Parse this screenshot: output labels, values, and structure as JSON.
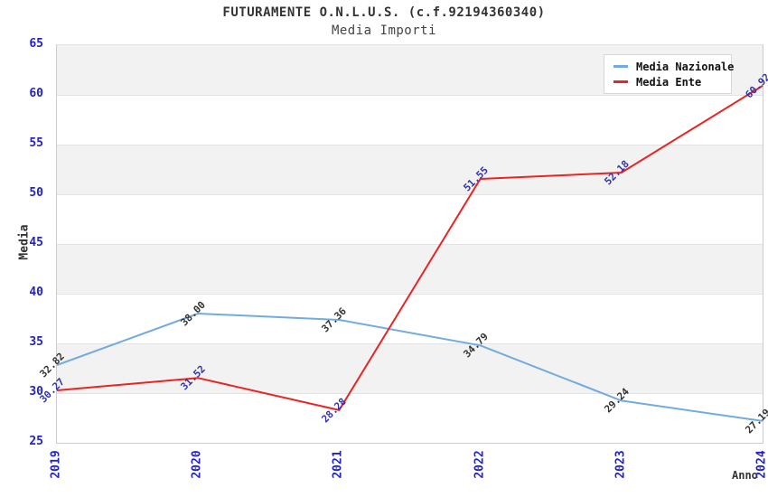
{
  "chart_data": {
    "type": "line",
    "title": "FUTURAMENTE O.N.L.U.S. (c.f.92194360340)",
    "subtitle": "Media Importi",
    "xlabel": "Anno",
    "ylabel": "Media",
    "categories": [
      "2019",
      "2020",
      "2021",
      "2022",
      "2023",
      "2024"
    ],
    "series": [
      {
        "name": "Media Nazionale",
        "color": "#73abdf",
        "label_color": "#333333",
        "values": [
          32.82,
          38.0,
          37.36,
          34.79,
          29.24,
          27.19
        ]
      },
      {
        "name": "Media Ente",
        "color": "#e82525",
        "label_color": "#3333aa",
        "values": [
          30.27,
          31.52,
          28.28,
          51.55,
          52.18,
          60.92
        ]
      }
    ],
    "ylim": [
      25,
      65
    ],
    "ytick_step": 5,
    "yticks": [
      25,
      30,
      35,
      40,
      45,
      50,
      55,
      60,
      65
    ],
    "grid": "horizontal-bands",
    "band_colors": [
      "#f2f2f2",
      "#ffffff"
    ],
    "gridline_color": "#e3e3e3",
    "axis_border_color": "#cccccc",
    "tick_label_color": "#2222cc",
    "legend_position": "top-right",
    "value_label_decimals": 2
  }
}
